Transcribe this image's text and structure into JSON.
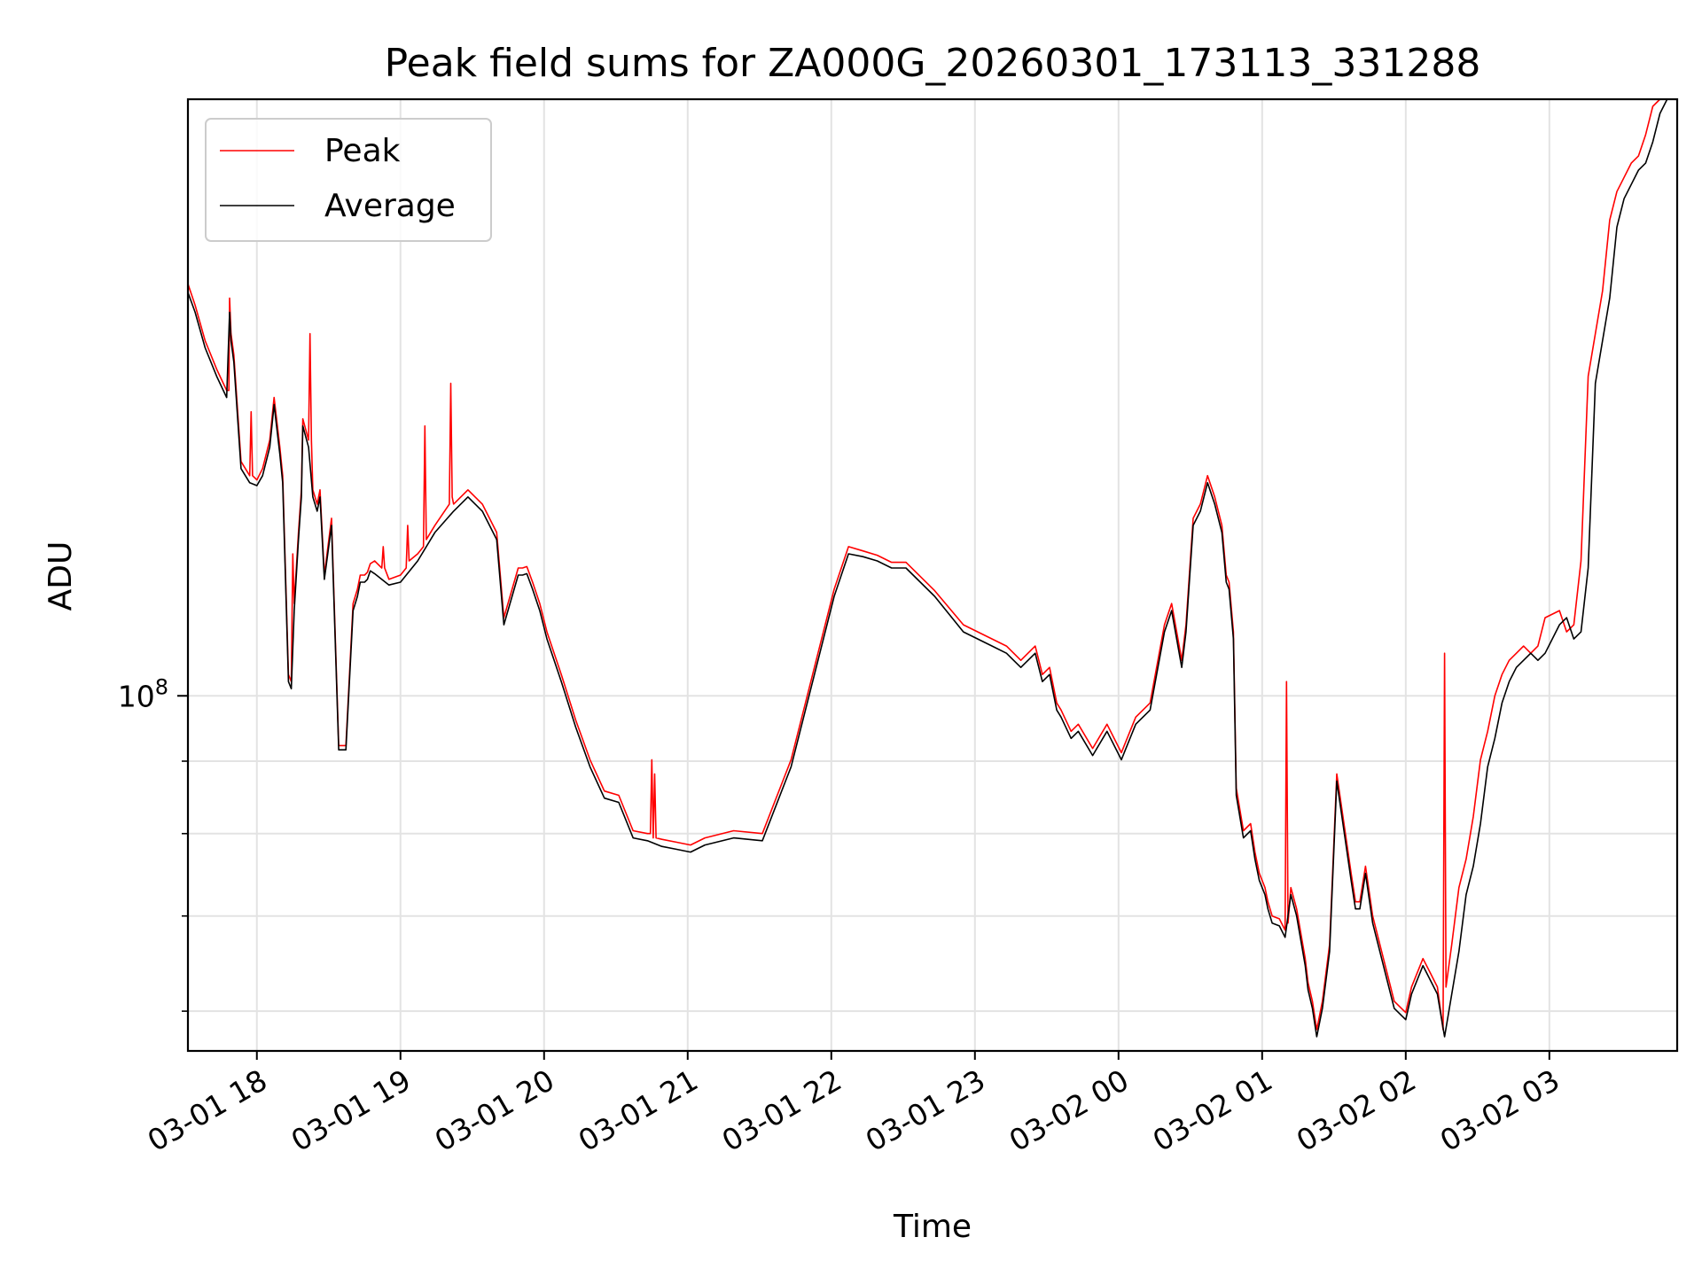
{
  "chart_data": {
    "type": "line",
    "title": "Peak field sums for ZA000G_20260301_173113_331288",
    "xlabel": "Time",
    "ylabel": "ADU",
    "yscale": "log",
    "x_unit": "hours since 03-01 17:31",
    "xlim": [
      0,
      10.37
    ],
    "ylim_log10": [
      7.75,
      8.42
    ],
    "grid": true,
    "legend_position": "top-left",
    "x_ticks": [
      {
        "x": 0.48,
        "label": "03-01 18"
      },
      {
        "x": 1.48,
        "label": "03-01 19"
      },
      {
        "x": 2.48,
        "label": "03-01 20"
      },
      {
        "x": 3.48,
        "label": "03-01 21"
      },
      {
        "x": 4.48,
        "label": "03-01 22"
      },
      {
        "x": 5.48,
        "label": "03-01 23"
      },
      {
        "x": 6.48,
        "label": "03-02 00"
      },
      {
        "x": 7.48,
        "label": "03-02 01"
      },
      {
        "x": 8.48,
        "label": "03-02 02"
      },
      {
        "x": 9.48,
        "label": "03-02 03"
      }
    ],
    "y_ticks_major": [
      {
        "log10": 8.0,
        "base": "10",
        "exp": "8"
      }
    ],
    "y_ticks_minor_log10": [
      7.778,
      7.845,
      7.903,
      7.954
    ],
    "series": [
      {
        "name": "Average",
        "color": "#000000",
        "x": [
          0,
          0.05,
          0.12,
          0.2,
          0.27,
          0.29,
          0.3,
          0.32,
          0.37,
          0.43,
          0.48,
          0.52,
          0.57,
          0.6,
          0.64,
          0.66,
          0.7,
          0.72,
          0.74,
          0.77,
          0.79,
          0.8,
          0.84,
          0.87,
          0.9,
          0.92,
          0.95,
          1.0,
          1.05,
          1.1,
          1.15,
          1.18,
          1.2,
          1.23,
          1.25,
          1.27,
          1.3,
          1.4,
          1.48,
          1.6,
          1.72,
          1.85,
          1.95,
          2.05,
          2.15,
          2.2,
          2.3,
          2.33,
          2.36,
          2.4,
          2.45,
          2.5,
          2.6,
          2.7,
          2.8,
          2.9,
          3.0,
          3.1,
          3.2,
          3.3,
          3.4,
          3.5,
          3.6,
          3.8,
          4.0,
          4.2,
          4.3,
          4.4,
          4.5,
          4.6,
          4.7,
          4.8,
          4.9,
          5.0,
          5.2,
          5.4,
          5.5,
          5.6,
          5.7,
          5.8,
          5.9,
          5.95,
          6.0,
          6.05,
          6.08,
          6.15,
          6.2,
          6.3,
          6.4,
          6.5,
          6.6,
          6.7,
          6.8,
          6.85,
          6.92,
          6.95,
          7.0,
          7.05,
          7.1,
          7.15,
          7.2,
          7.23,
          7.25,
          7.28,
          7.3,
          7.35,
          7.4,
          7.43,
          7.46,
          7.5,
          7.52,
          7.55,
          7.6,
          7.64,
          7.68,
          7.72,
          7.78,
          7.8,
          7.83,
          7.86,
          7.9,
          7.95,
          8.0,
          8.05,
          8.1,
          8.13,
          8.16,
          8.2,
          8.25,
          8.3,
          8.35,
          8.4,
          8.45,
          8.48,
          8.52,
          8.6,
          8.65,
          8.7,
          8.75,
          8.8,
          8.85,
          8.9,
          8.95,
          9.0,
          9.05,
          9.1,
          9.15,
          9.2,
          9.25,
          9.3,
          9.35,
          9.4,
          9.45,
          9.55,
          9.6,
          9.65,
          9.7,
          9.75,
          9.8,
          9.85,
          9.9,
          9.95,
          10.0,
          10.05,
          10.1,
          10.15,
          10.2,
          10.25,
          10.3,
          10.37
        ],
        "log10": [
          8.284,
          8.27,
          8.245,
          8.225,
          8.21,
          8.27,
          8.25,
          8.235,
          8.16,
          8.15,
          8.148,
          8.155,
          8.175,
          8.205,
          8.17,
          8.15,
          8.01,
          8.005,
          8.06,
          8.11,
          8.14,
          8.19,
          8.175,
          8.14,
          8.13,
          8.14,
          8.082,
          8.12,
          7.962,
          7.962,
          8.06,
          8.07,
          8.08,
          8.08,
          8.082,
          8.088,
          8.086,
          8.078,
          8.08,
          8.095,
          8.115,
          8.13,
          8.14,
          8.13,
          8.11,
          8.05,
          8.085,
          8.085,
          8.086,
          8.075,
          8.06,
          8.04,
          8.01,
          7.978,
          7.95,
          7.928,
          7.925,
          7.9,
          7.898,
          7.894,
          7.892,
          7.89,
          7.895,
          7.9,
          7.898,
          7.95,
          7.99,
          8.03,
          8.07,
          8.1,
          8.098,
          8.095,
          8.09,
          8.09,
          8.07,
          8.045,
          8.04,
          8.035,
          8.03,
          8.02,
          8.03,
          8.01,
          8.015,
          7.99,
          7.985,
          7.97,
          7.975,
          7.958,
          7.975,
          7.955,
          7.98,
          7.99,
          8.045,
          8.06,
          8.02,
          8.045,
          8.12,
          8.13,
          8.15,
          8.135,
          8.115,
          8.08,
          8.075,
          8.04,
          7.93,
          7.9,
          7.905,
          7.885,
          7.87,
          7.86,
          7.85,
          7.84,
          7.838,
          7.83,
          7.86,
          7.845,
          7.81,
          7.793,
          7.78,
          7.76,
          7.78,
          7.82,
          7.94,
          7.905,
          7.87,
          7.85,
          7.85,
          7.875,
          7.84,
          7.82,
          7.8,
          7.78,
          7.775,
          7.772,
          7.79,
          7.81,
          7.8,
          7.79,
          7.76,
          7.79,
          7.82,
          7.86,
          7.88,
          7.91,
          7.95,
          7.97,
          7.995,
          8.01,
          8.02,
          8.025,
          8.03,
          8.025,
          8.03,
          8.05,
          8.055,
          8.04,
          8.045,
          8.09,
          8.22,
          8.25,
          8.28,
          8.33,
          8.35,
          8.36,
          8.37,
          8.375,
          8.39,
          8.41,
          8.42
        ]
      },
      {
        "name": "Peak",
        "color": "#ff0000",
        "x": [
          0,
          0.05,
          0.12,
          0.2,
          0.27,
          0.285,
          0.29,
          0.3,
          0.32,
          0.37,
          0.43,
          0.44,
          0.45,
          0.48,
          0.52,
          0.57,
          0.6,
          0.64,
          0.66,
          0.7,
          0.72,
          0.73,
          0.74,
          0.77,
          0.79,
          0.8,
          0.84,
          0.85,
          0.86,
          0.87,
          0.9,
          0.92,
          0.95,
          1.0,
          1.05,
          1.1,
          1.15,
          1.18,
          1.2,
          1.23,
          1.25,
          1.27,
          1.3,
          1.35,
          1.36,
          1.37,
          1.4,
          1.48,
          1.52,
          1.53,
          1.54,
          1.6,
          1.64,
          1.65,
          1.66,
          1.72,
          1.82,
          1.83,
          1.84,
          1.85,
          1.95,
          2.05,
          2.15,
          2.2,
          2.3,
          2.33,
          2.36,
          2.4,
          2.45,
          2.5,
          2.6,
          2.7,
          2.8,
          2.9,
          3.0,
          3.1,
          3.2,
          3.22,
          3.23,
          3.24,
          3.25,
          3.26,
          3.3,
          3.4,
          3.5,
          3.6,
          3.8,
          4.0,
          4.2,
          4.3,
          4.4,
          4.5,
          4.6,
          4.7,
          4.8,
          4.9,
          5.0,
          5.2,
          5.4,
          5.5,
          5.6,
          5.7,
          5.8,
          5.9,
          5.95,
          6.0,
          6.05,
          6.08,
          6.15,
          6.2,
          6.3,
          6.4,
          6.5,
          6.6,
          6.7,
          6.8,
          6.85,
          6.92,
          6.95,
          7.0,
          7.05,
          7.1,
          7.15,
          7.2,
          7.23,
          7.25,
          7.28,
          7.3,
          7.35,
          7.4,
          7.43,
          7.46,
          7.5,
          7.52,
          7.55,
          7.6,
          7.64,
          7.65,
          7.66,
          7.68,
          7.72,
          7.78,
          7.8,
          7.83,
          7.86,
          7.9,
          7.95,
          8.0,
          8.05,
          8.1,
          8.13,
          8.16,
          8.2,
          8.25,
          8.3,
          8.35,
          8.4,
          8.45,
          8.48,
          8.52,
          8.6,
          8.65,
          8.7,
          8.74,
          8.75,
          8.76,
          8.8,
          8.85,
          8.9,
          8.95,
          9.0,
          9.05,
          9.1,
          9.15,
          9.2,
          9.25,
          9.3,
          9.35,
          9.4,
          9.45,
          9.55,
          9.6,
          9.65,
          9.7,
          9.75,
          9.8,
          9.85,
          9.9,
          9.95,
          10.0,
          10.05,
          10.1,
          10.15,
          10.2,
          10.25,
          10.3,
          10.37
        ],
        "log10": [
          8.29,
          8.275,
          8.25,
          8.23,
          8.215,
          8.215,
          8.28,
          8.255,
          8.24,
          8.165,
          8.155,
          8.2,
          8.155,
          8.152,
          8.16,
          8.18,
          8.21,
          8.175,
          8.155,
          8.015,
          8.01,
          8.1,
          8.065,
          8.115,
          8.145,
          8.195,
          8.18,
          8.255,
          8.18,
          8.145,
          8.135,
          8.145,
          8.085,
          8.125,
          7.965,
          7.965,
          8.065,
          8.075,
          8.085,
          8.085,
          8.087,
          8.093,
          8.095,
          8.09,
          8.105,
          8.09,
          8.082,
          8.085,
          8.09,
          8.12,
          8.095,
          8.1,
          8.105,
          8.19,
          8.11,
          8.12,
          8.135,
          8.22,
          8.14,
          8.135,
          8.145,
          8.135,
          8.115,
          8.055,
          8.09,
          8.09,
          8.091,
          8.08,
          8.065,
          8.045,
          8.015,
          7.983,
          7.955,
          7.933,
          7.93,
          7.905,
          7.903,
          7.903,
          7.955,
          7.9,
          7.945,
          7.9,
          7.899,
          7.897,
          7.895,
          7.9,
          7.905,
          7.903,
          7.955,
          7.995,
          8.035,
          8.075,
          8.105,
          8.102,
          8.099,
          8.094,
          8.094,
          8.074,
          8.05,
          8.045,
          8.04,
          8.035,
          8.025,
          8.035,
          8.015,
          8.02,
          7.995,
          7.99,
          7.975,
          7.98,
          7.963,
          7.98,
          7.96,
          7.985,
          7.995,
          8.05,
          8.065,
          8.025,
          8.05,
          8.125,
          8.135,
          8.155,
          8.14,
          8.12,
          8.085,
          8.08,
          8.045,
          7.935,
          7.905,
          7.91,
          7.89,
          7.875,
          7.865,
          7.855,
          7.845,
          7.843,
          7.835,
          8.01,
          7.84,
          7.865,
          7.85,
          7.815,
          7.798,
          7.785,
          7.765,
          7.785,
          7.825,
          7.945,
          7.91,
          7.875,
          7.855,
          7.855,
          7.88,
          7.845,
          7.825,
          7.805,
          7.785,
          7.78,
          7.777,
          7.795,
          7.815,
          7.805,
          7.795,
          7.765,
          8.03,
          7.795,
          7.825,
          7.865,
          7.885,
          7.915,
          7.955,
          7.975,
          8.0,
          8.015,
          8.025,
          8.03,
          8.035,
          8.03,
          8.035,
          8.055,
          8.06,
          8.045,
          8.05,
          8.095,
          8.225,
          8.255,
          8.285,
          8.335,
          8.355,
          8.365,
          8.375,
          8.38,
          8.395,
          8.415,
          8.42
        ]
      }
    ]
  }
}
